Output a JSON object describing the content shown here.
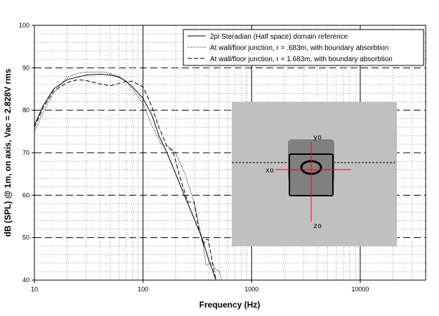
{
  "chart_data": {
    "type": "line",
    "title": "",
    "xlabel": "Frequency (Hz)",
    "ylabel": "dB (SPL) @ 1m, on axis, Vac = 2.828V rms",
    "xscale": "log",
    "xlim": [
      10,
      40000
    ],
    "ylim": [
      40,
      100
    ],
    "xticks": [
      "10",
      "100",
      "1000",
      "10000"
    ],
    "yticks": [
      "40",
      "50",
      "60",
      "70",
      "80",
      "90",
      "100"
    ],
    "grid": true,
    "legend_position": "top-right",
    "series": [
      {
        "name": "2pi Steradian (Half space) domain reference",
        "style": "solid",
        "points": [
          [
            10,
            76.5
          ],
          [
            12,
            81
          ],
          [
            15,
            85
          ],
          [
            20,
            87.2
          ],
          [
            30,
            88.3
          ],
          [
            40,
            88.5
          ],
          [
            50,
            88.3
          ],
          [
            60,
            87.8
          ],
          [
            70,
            86.8
          ],
          [
            80,
            85.5
          ],
          [
            100,
            82.8
          ],
          [
            120,
            79
          ],
          [
            140,
            74
          ],
          [
            166,
            70
          ],
          [
            200,
            65
          ],
          [
            240,
            60
          ],
          [
            290,
            55
          ],
          [
            348,
            50
          ],
          [
            400,
            45
          ],
          [
            469,
            40
          ]
        ]
      },
      {
        "name": "At wall/floor junction, r = .683m, with boundary absorbtion",
        "style": "dotted",
        "points": [
          [
            10,
            75
          ],
          [
            12,
            79.5
          ],
          [
            15,
            84
          ],
          [
            20,
            87.8
          ],
          [
            25,
            88.7
          ],
          [
            30,
            89
          ],
          [
            45,
            89
          ],
          [
            60,
            88
          ],
          [
            70,
            86.8
          ],
          [
            80,
            85
          ],
          [
            100,
            81.6
          ],
          [
            120,
            76.5
          ],
          [
            146,
            72
          ],
          [
            170,
            71.5
          ],
          [
            200,
            70
          ],
          [
            248,
            64.5
          ],
          [
            295,
            58.4
          ],
          [
            325,
            53.4
          ],
          [
            359,
            48
          ],
          [
            380,
            43.5
          ],
          [
            420,
            44
          ],
          [
            470,
            42.5
          ],
          [
            505,
            42
          ],
          [
            530,
            40
          ]
        ]
      },
      {
        "name": "At wall/floor junction, r = 1.683m, with boundary absorbtion",
        "style": "dashed",
        "points": [
          [
            10,
            76
          ],
          [
            12,
            80.5
          ],
          [
            15,
            84.5
          ],
          [
            20,
            86.5
          ],
          [
            25,
            87.2
          ],
          [
            30,
            87
          ],
          [
            40,
            86.2
          ],
          [
            50,
            85.8
          ],
          [
            60,
            86.3
          ],
          [
            70,
            86.8
          ],
          [
            80,
            86.8
          ],
          [
            100,
            85.5
          ],
          [
            120,
            81
          ],
          [
            140,
            76
          ],
          [
            166,
            71.5
          ],
          [
            189,
            70.3
          ],
          [
            220,
            64
          ],
          [
            259,
            58.4
          ],
          [
            295,
            58.4
          ],
          [
            320,
            53
          ],
          [
            359,
            48.3
          ],
          [
            380,
            49.6
          ],
          [
            398,
            49.6
          ],
          [
            430,
            45
          ],
          [
            469,
            40
          ]
        ]
      }
    ]
  },
  "inset": {
    "labels": {
      "y": "yo",
      "x": "xo",
      "z": "zo"
    },
    "colors": {
      "background": "#c0c0c0",
      "cabinet": "#808080",
      "axes": "#ff0000"
    }
  }
}
